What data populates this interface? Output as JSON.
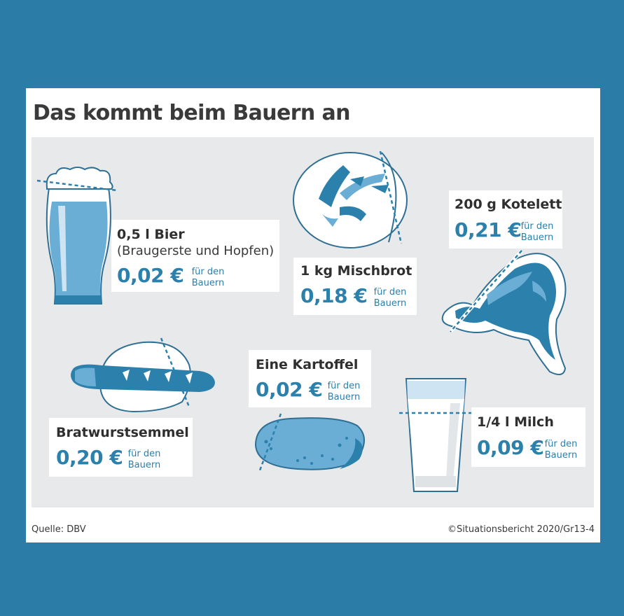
{
  "title": "Das kommt beim Bauern an",
  "note_line1": "für den",
  "note_line2": "Bauern",
  "items": [
    {
      "name": "0,5 l Bier",
      "detail": "(Braugerste und Hopfen)",
      "price": "0,02 €",
      "icon": "beer-glass-icon"
    },
    {
      "name": "1 kg Mischbrot",
      "price": "0,18 €",
      "icon": "bread-loaf-icon"
    },
    {
      "name": "200 g Kotelett",
      "price": "0,21 €",
      "icon": "pork-chop-icon"
    },
    {
      "name": "Bratwurstsemmel",
      "price": "0,20 €",
      "icon": "sausage-roll-icon"
    },
    {
      "name": "Eine Kartoffel",
      "price": "0,02 €",
      "icon": "potato-icon"
    },
    {
      "name": "1/4 l Milch",
      "price": "0,09 €",
      "icon": "milk-glass-icon"
    }
  ],
  "colors": {
    "frame": "#2b7da8",
    "accent": "#2b80ac",
    "light_blue": "#6aaed6",
    "panel": "#e8e9ea"
  },
  "source": "Quelle: DBV",
  "credit": "©Situationsbericht 2020/Gr13-4"
}
